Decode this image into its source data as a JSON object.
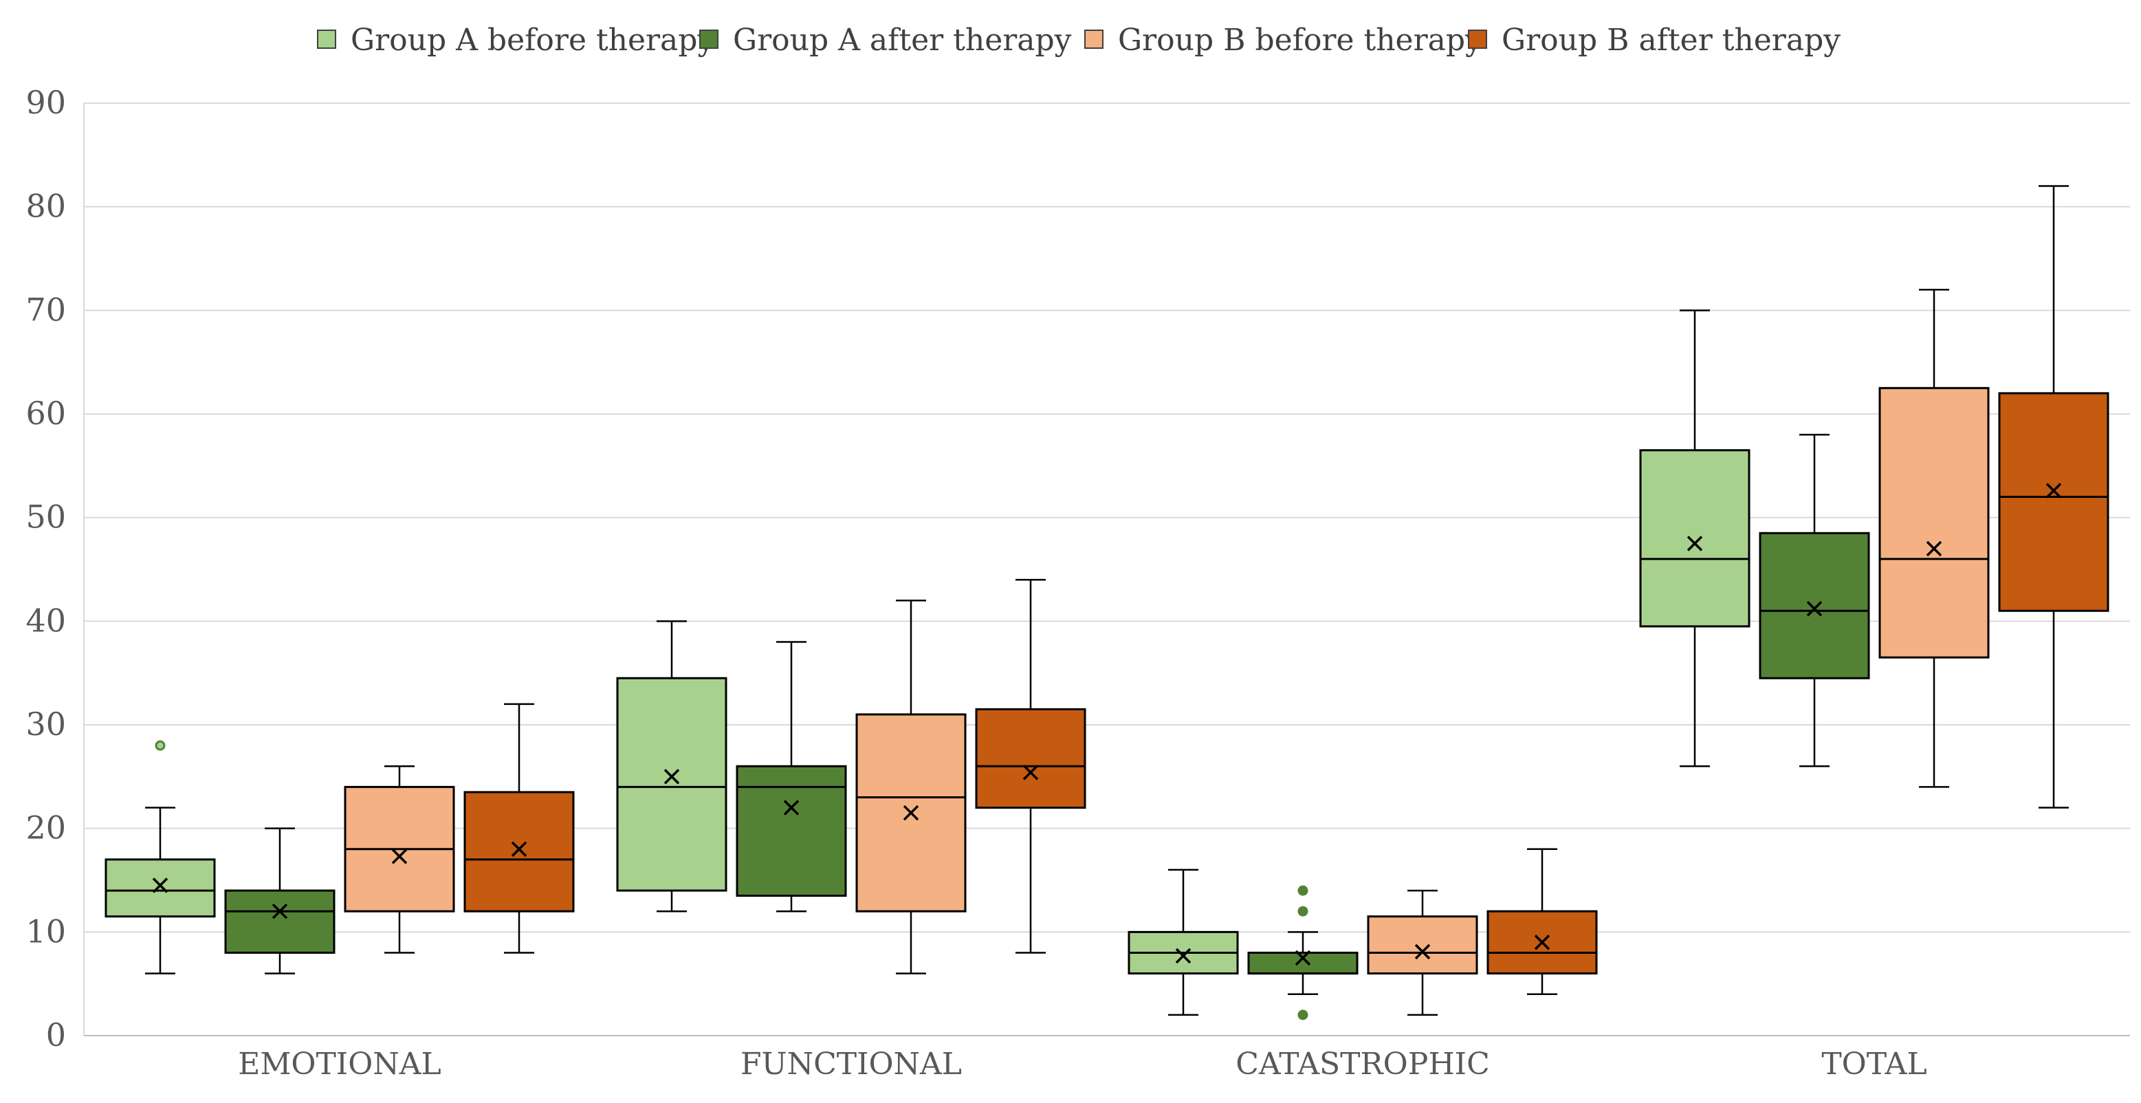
{
  "chart_data": {
    "type": "box",
    "title": "",
    "xlabel": "",
    "ylabel": "",
    "ylim": [
      0,
      90
    ],
    "yticks": [
      0,
      10,
      20,
      30,
      40,
      50,
      60,
      70,
      80,
      90
    ],
    "categories": [
      "EMOTIONAL",
      "FUNCTIONAL",
      "CATASTROPHIC",
      "TOTAL"
    ],
    "legend_position": "top-center",
    "series": [
      {
        "name": "Group A before therapy",
        "color": "#a9d18e",
        "boxes": [
          {
            "min": 6,
            "q1": 11.5,
            "median": 14,
            "q3": 17,
            "max": 22,
            "mean": 14.5,
            "outliers": [
              28
            ]
          },
          {
            "min": 12,
            "q1": 14,
            "median": 24,
            "q3": 34.5,
            "max": 40,
            "mean": 25,
            "outliers": []
          },
          {
            "min": 2,
            "q1": 6,
            "median": 8,
            "q3": 10,
            "max": 16,
            "mean": 7.7,
            "outliers": []
          },
          {
            "min": 26,
            "q1": 39.5,
            "median": 46,
            "q3": 56.5,
            "max": 70,
            "mean": 47.5,
            "outliers": []
          }
        ]
      },
      {
        "name": "Group A after therapy",
        "color": "#548235",
        "boxes": [
          {
            "min": 6,
            "q1": 8,
            "median": 12,
            "q3": 14,
            "max": 20,
            "mean": 12,
            "outliers": []
          },
          {
            "min": 12,
            "q1": 13.5,
            "median": 24,
            "q3": 26,
            "max": 38,
            "mean": 22,
            "outliers": []
          },
          {
            "min": 4,
            "q1": 6,
            "median": 6,
            "q3": 8,
            "max": 10,
            "mean": 7.5,
            "outliers": [
              2,
              12,
              14
            ]
          },
          {
            "min": 26,
            "q1": 34.5,
            "median": 41,
            "q3": 48.5,
            "max": 58,
            "mean": 41.2,
            "outliers": []
          }
        ]
      },
      {
        "name": "Group B before therapy",
        "color": "#f4b183",
        "boxes": [
          {
            "min": 8,
            "q1": 12,
            "median": 18,
            "q3": 24,
            "max": 26,
            "mean": 17.3,
            "outliers": []
          },
          {
            "min": 6,
            "q1": 12,
            "median": 23,
            "q3": 31,
            "max": 42,
            "mean": 21.5,
            "outliers": []
          },
          {
            "min": 2,
            "q1": 6,
            "median": 8,
            "q3": 11.5,
            "max": 14,
            "mean": 8.1,
            "outliers": []
          },
          {
            "min": 24,
            "q1": 36.5,
            "median": 46,
            "q3": 62.5,
            "max": 72,
            "mean": 47,
            "outliers": []
          }
        ]
      },
      {
        "name": "Group B after therapy",
        "color": "#c55a11",
        "boxes": [
          {
            "min": 8,
            "q1": 12,
            "median": 17,
            "q3": 23.5,
            "max": 32,
            "mean": 18,
            "outliers": []
          },
          {
            "min": 8,
            "q1": 22,
            "median": 26,
            "q3": 31.5,
            "max": 44,
            "mean": 25.4,
            "outliers": []
          },
          {
            "min": 4,
            "q1": 6,
            "median": 8,
            "q3": 12,
            "max": 18,
            "mean": 9,
            "outliers": []
          },
          {
            "min": 22,
            "q1": 41,
            "median": 52,
            "q3": 62,
            "max": 82,
            "mean": 52.6,
            "outliers": []
          }
        ]
      }
    ]
  }
}
